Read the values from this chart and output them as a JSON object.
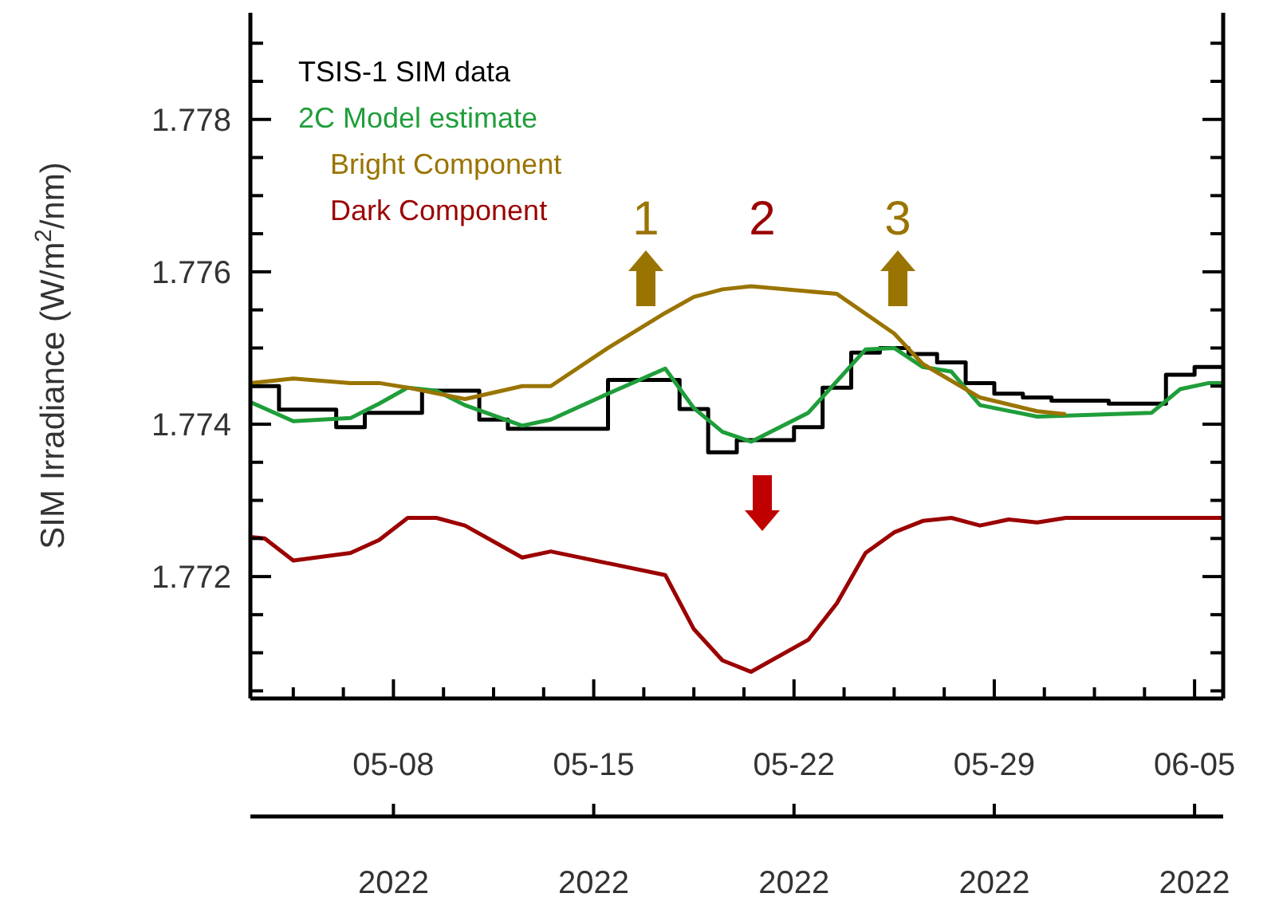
{
  "chart_data": {
    "type": "line",
    "ylabel": "SIM Irradiance (W/m$^{2}$/nm)",
    "legend": "top left",
    "xlim": [
      "2022-05-03",
      "2022-06-06"
    ],
    "xticks": [
      {
        "value": "2022-05-04T12:00",
        "label": null
      },
      {
        "value": "2022-05-06T06:00",
        "label": null
      },
      {
        "value": "2022-05-08",
        "label": "05-08"
      },
      {
        "value": "2022-05-09T18:00",
        "label": null
      },
      {
        "value": "2022-05-11T12:00",
        "label": null
      },
      {
        "value": "2022-05-13T06:00",
        "label": null
      },
      {
        "value": "2022-05-15",
        "label": "05-15"
      },
      {
        "value": "2022-05-16T18:00",
        "label": null
      },
      {
        "value": "2022-05-18T12:00",
        "label": null
      },
      {
        "value": "2022-05-20T06:00",
        "label": null
      },
      {
        "value": "2022-05-22",
        "label": "05-22"
      },
      {
        "value": "2022-05-23T18:00",
        "label": null
      },
      {
        "value": "2022-05-25T12:00",
        "label": null
      },
      {
        "value": "2022-05-27T06:00",
        "label": null
      },
      {
        "value": "2022-05-29",
        "label": "05-29"
      },
      {
        "value": "2022-05-30T18:00",
        "label": null
      },
      {
        "value": "2022-06-01T12:00",
        "label": null
      },
      {
        "value": "2022-06-03T06:00",
        "label": null
      },
      {
        "value": "2022-06-05",
        "label": "06-05"
      }
    ],
    "ylim": [
      1.7704,
      1.7794
    ],
    "yticks": [
      {
        "value": 1.7705,
        "label": null
      },
      {
        "value": 1.771,
        "label": null
      },
      {
        "value": 1.7715,
        "label": null
      },
      {
        "value": 1.772,
        "label": "1.772"
      },
      {
        "value": 1.7725,
        "label": null
      },
      {
        "value": 1.773,
        "label": null
      },
      {
        "value": 1.7735,
        "label": null
      },
      {
        "value": 1.774,
        "label": "1.774"
      },
      {
        "value": 1.7745,
        "label": null
      },
      {
        "value": 1.775,
        "label": null
      },
      {
        "value": 1.7755,
        "label": null
      },
      {
        "value": 1.776,
        "label": "1.776"
      },
      {
        "value": 1.7765,
        "label": null
      },
      {
        "value": 1.777,
        "label": null
      },
      {
        "value": 1.7775,
        "label": null
      },
      {
        "value": 1.778,
        "label": "1.778"
      },
      {
        "value": 1.7785,
        "label": null
      },
      {
        "value": 1.779,
        "label": null
      }
    ],
    "x2lim": [
      "2022-05-03",
      "2022-06-06"
    ],
    "x2ticks": [
      {
        "value": "2022-05-08",
        "label": "2022"
      },
      {
        "value": "2022-05-15",
        "label": "2022"
      },
      {
        "value": "2022-05-22",
        "label": "2022"
      },
      {
        "value": "2022-05-29",
        "label": "2022"
      },
      {
        "value": "2022-06-05",
        "label": "2022"
      }
    ],
    "annotations": [
      "1",
      "2",
      "3"
    ],
    "series": [
      {
        "name": "TSIS-1 SIM data",
        "type": "step",
        "color": "#000000",
        "x": [
          "2022-05-03",
          "2022-05-04",
          "2022-05-06",
          "2022-05-07",
          "2022-05-09",
          "2022-05-11",
          "2022-05-12",
          "2022-05-15T12:00",
          "2022-05-18",
          "2022-05-19",
          "2022-05-20",
          "2022-05-22",
          "2022-05-23",
          "2022-05-24",
          "2022-05-25",
          "2022-05-26",
          "2022-05-27",
          "2022-05-28",
          "2022-05-29",
          "2022-05-30",
          "2022-05-31",
          "2022-06-02",
          "2022-06-04",
          "2022-06-05",
          "2022-06-06"
        ],
        "values": [
          1.7745,
          1.77419,
          1.77396,
          1.77415,
          1.77444,
          1.77406,
          1.77394,
          1.77458,
          1.7742,
          1.77363,
          1.77379,
          1.77396,
          1.77448,
          1.77494,
          1.775,
          1.77492,
          1.77481,
          1.77454,
          1.7744,
          1.77435,
          1.77431,
          1.77427,
          1.77465,
          1.77475,
          1.77475
        ]
      },
      {
        "name": "2C Model estimate",
        "color": "#1f9e3a",
        "x": [
          "2022-05-03",
          "2022-05-04T12:00",
          "2022-05-06T12:00",
          "2022-05-07T12:00",
          "2022-05-08T12:00",
          "2022-05-09T12:00",
          "2022-05-10T12:00",
          "2022-05-12T12:00",
          "2022-05-13T12:00",
          "2022-05-15T12:00",
          "2022-05-17T12:00",
          "2022-05-18T12:00",
          "2022-05-19T12:00",
          "2022-05-20T12:00",
          "2022-05-22T12:00",
          "2022-05-24T12:00",
          "2022-05-25T12:00",
          "2022-05-26T12:00",
          "2022-05-27T12:00",
          "2022-05-28T12:00",
          "2022-05-30T12:00",
          "2022-06-03T12:00",
          "2022-06-04T12:00",
          "2022-06-05T12:00",
          "2022-06-06"
        ],
        "values": [
          1.77429,
          1.77404,
          1.77408,
          1.77427,
          1.77448,
          1.77444,
          1.77425,
          1.77398,
          1.77406,
          1.7744,
          1.77473,
          1.77421,
          1.7739,
          1.77377,
          1.77415,
          1.77498,
          1.775,
          1.77475,
          1.77469,
          1.77425,
          1.7741,
          1.77415,
          1.77446,
          1.77454,
          1.77454
        ]
      },
      {
        "name": "Bright Component",
        "color": "#9a7400",
        "x": [
          "2022-05-03",
          "2022-05-04T12:00",
          "2022-05-06T12:00",
          "2022-05-07T12:00",
          "2022-05-08T12:00",
          "2022-05-10T12:00",
          "2022-05-12T12:00",
          "2022-05-13T12:00",
          "2022-05-15T12:00",
          "2022-05-17T12:00",
          "2022-05-18T12:00",
          "2022-05-19T12:00",
          "2022-05-20T12:00",
          "2022-05-23T12:00",
          "2022-05-25T12:00",
          "2022-05-26T12:00",
          "2022-05-28T12:00",
          "2022-05-30T12:00",
          "2022-05-31T12:00"
        ],
        "values": [
          1.77454,
          1.7746,
          1.77454,
          1.77454,
          1.77448,
          1.77433,
          1.7745,
          1.7745,
          1.775,
          1.77546,
          1.77567,
          1.77577,
          1.77581,
          1.77571,
          1.77519,
          1.77479,
          1.77435,
          1.77417,
          1.77413
        ]
      },
      {
        "name": "Dark Component",
        "color": "#9b0000",
        "x": [
          "2022-05-03",
          "2022-05-03T12:00",
          "2022-05-04T12:00",
          "2022-05-06T12:00",
          "2022-05-07T12:00",
          "2022-05-08T12:00",
          "2022-05-09T12:00",
          "2022-05-10T12:00",
          "2022-05-12T12:00",
          "2022-05-13T12:00",
          "2022-05-17T12:00",
          "2022-05-18T12:00",
          "2022-05-19T12:00",
          "2022-05-20T12:00",
          "2022-05-22T12:00",
          "2022-05-23T12:00",
          "2022-05-24T12:00",
          "2022-05-25T12:00",
          "2022-05-26T12:00",
          "2022-05-27T12:00",
          "2022-05-28T12:00",
          "2022-05-29T12:00",
          "2022-05-30T12:00",
          "2022-05-31T12:00",
          "2022-06-06"
        ],
        "values": [
          1.77252,
          1.7725,
          1.77221,
          1.77231,
          1.77248,
          1.77277,
          1.77277,
          1.77267,
          1.77225,
          1.77233,
          1.77202,
          1.77131,
          1.7709,
          1.77075,
          1.77117,
          1.77165,
          1.77231,
          1.77258,
          1.77273,
          1.77277,
          1.77267,
          1.77275,
          1.77271,
          1.77277,
          1.77277
        ]
      }
    ]
  }
}
